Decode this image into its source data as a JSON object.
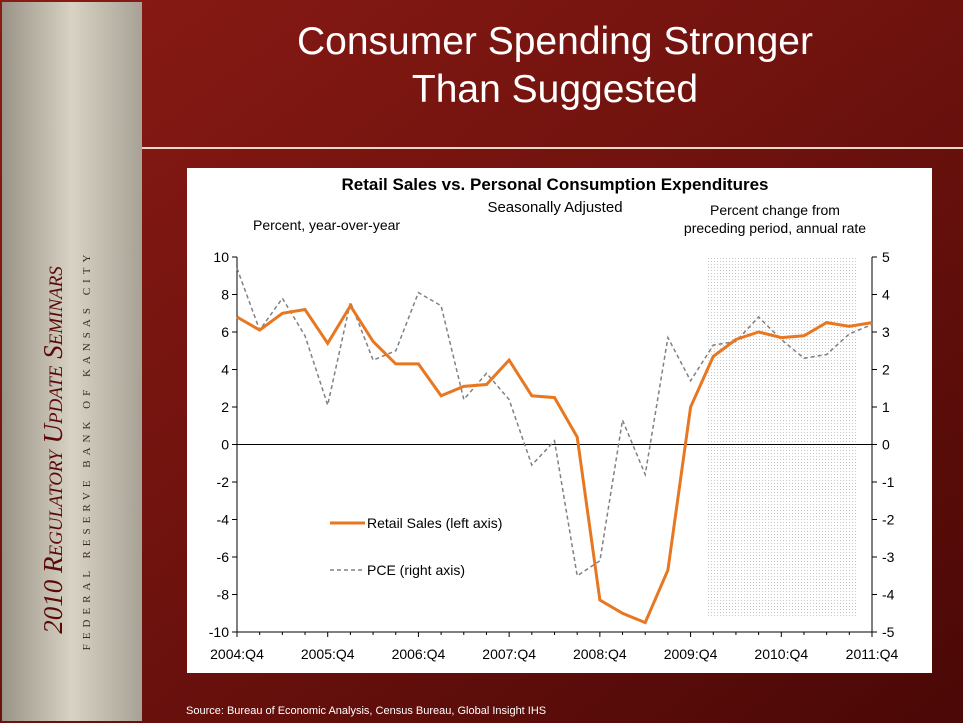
{
  "slide": {
    "title": "Consumer Spending Stronger Than Suggested",
    "sidebar_title": "2010 Regulatory Update Seminars",
    "sidebar_subtitle": "Federal Reserve Bank of Kansas City",
    "source": "Source: Bureau of Economic Analysis, Census Bureau, Global Insight IHS"
  },
  "chart_data": {
    "type": "line",
    "title": "Retail Sales vs. Personal Consumption Expenditures",
    "subtitle": "Seasonally Adjusted",
    "ylabel": "Percent, year-over-year",
    "y2label": [
      "Percent change from",
      "preceding period, annual rate"
    ],
    "categories": [
      "2004:Q4",
      null,
      null,
      null,
      "2005:Q4",
      null,
      null,
      null,
      "2006:Q4",
      null,
      null,
      null,
      "2007:Q4",
      null,
      null,
      null,
      "2008:Q4",
      null,
      null,
      null,
      "2009:Q4",
      null,
      null,
      null,
      "2010:Q4",
      null,
      null,
      null,
      "2011:Q4"
    ],
    "series": [
      {
        "name": "Retail Sales (left axis)",
        "color": "#e87722",
        "axis": "y",
        "values": [
          6.8,
          6.1,
          7.0,
          7.2,
          5.4,
          7.4,
          5.5,
          4.3,
          4.3,
          2.6,
          3.1,
          3.2,
          4.5,
          2.6,
          2.5,
          0.4,
          -8.3,
          -9.0,
          -9.5,
          -6.7,
          2.0,
          4.7,
          5.6,
          6.0,
          5.7,
          5.8,
          6.5,
          6.3,
          6.5
        ]
      },
      {
        "name": "PCE (right axis)",
        "color": "#808080",
        "axis": "y2",
        "values": [
          4.7,
          3.05,
          3.9,
          2.9,
          1.05,
          3.8,
          2.25,
          2.5,
          4.05,
          3.7,
          1.2,
          1.9,
          1.2,
          -0.55,
          0.1,
          -3.5,
          -3.1,
          0.65,
          -0.8,
          2.85,
          1.7,
          2.65,
          2.75,
          3.4,
          2.8,
          2.3,
          2.4,
          2.95,
          3.2
        ]
      }
    ],
    "ylim": [
      -10,
      10
    ],
    "yticks": [
      -10,
      -8,
      -6,
      -4,
      -2,
      0,
      2,
      4,
      6,
      8,
      10
    ],
    "y2lim": [
      -5,
      5
    ],
    "y2ticks": [
      -5,
      -4,
      -3,
      -2,
      -1,
      0,
      1,
      2,
      3,
      4,
      5
    ]
  }
}
